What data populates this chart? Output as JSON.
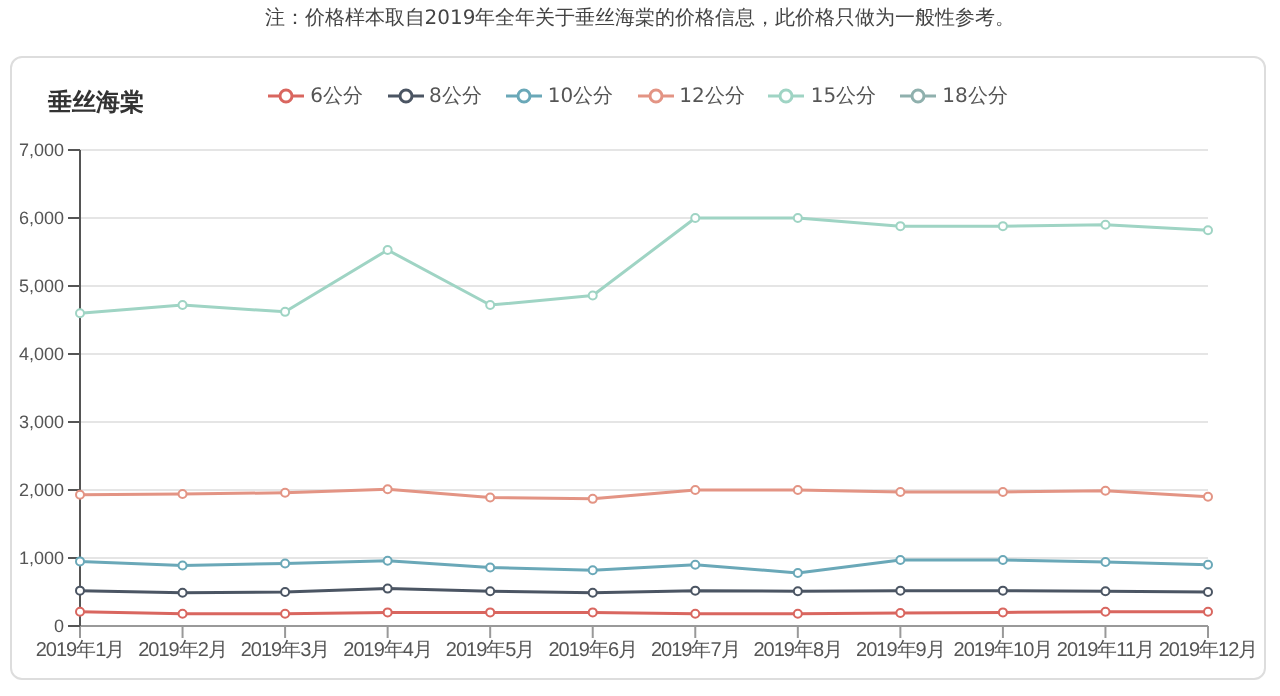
{
  "chart_data": {
    "type": "line",
    "title": "垂丝海棠",
    "annotations": [
      "注：价格样本取自2019年全年关于垂丝海棠的价格信息，此价格只做为一般性参考。"
    ],
    "categories": [
      "2019年1月",
      "2019年2月",
      "2019年3月",
      "2019年4月",
      "2019年5月",
      "2019年6月",
      "2019年7月",
      "2019年8月",
      "2019年9月",
      "2019年10月",
      "2019年11月",
      "2019年12月"
    ],
    "series": [
      {
        "name": "6公分",
        "color": "#d9665f",
        "values": [
          210,
          180,
          180,
          200,
          200,
          200,
          180,
          180,
          190,
          200,
          210,
          210
        ]
      },
      {
        "name": "8公分",
        "color": "#4b5563",
        "values": [
          520,
          490,
          500,
          550,
          510,
          490,
          520,
          510,
          520,
          520,
          510,
          500
        ]
      },
      {
        "name": "10公分",
        "color": "#6aa8b8",
        "values": [
          950,
          890,
          920,
          960,
          860,
          820,
          900,
          780,
          970,
          970,
          940,
          900
        ]
      },
      {
        "name": "12公分",
        "color": "#e39484",
        "values": [
          1930,
          1940,
          1960,
          2010,
          1890,
          1870,
          2000,
          2000,
          1970,
          1970,
          1990,
          1900
        ]
      },
      {
        "name": "15公分",
        "color": "#9fd4c4",
        "values": [
          4600,
          4720,
          4620,
          5530,
          4720,
          4860,
          6000,
          6000,
          5880,
          5880,
          5900,
          5820
        ]
      },
      {
        "name": "18公分",
        "color": "#8fb0ad",
        "values": [
          null,
          null,
          null,
          null,
          null,
          null,
          null,
          null,
          null,
          null,
          null,
          null
        ]
      }
    ],
    "ylim": [
      0,
      7000
    ],
    "yticks": [
      0,
      {
        "value": 1000,
        "label": "1,000"
      },
      {
        "value": 2000,
        "label": "2,000"
      },
      {
        "value": 3000,
        "label": "3,000"
      },
      {
        "value": 4000,
        "label": "4,000"
      },
      {
        "value": 5000,
        "label": "5,000"
      },
      {
        "value": 6000,
        "label": "6,000"
      },
      {
        "value": 7000,
        "label": "7,000"
      }
    ],
    "grid": "y",
    "legend": "top",
    "marker": "circle",
    "line_style": "solid"
  }
}
